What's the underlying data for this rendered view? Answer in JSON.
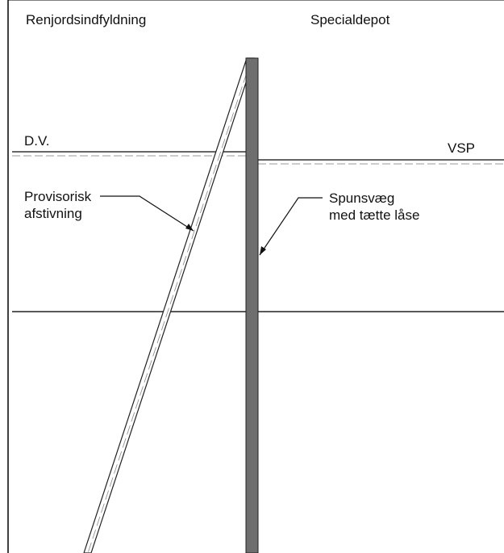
{
  "labels": {
    "left_zone": "Renjordsindfyldning",
    "right_zone": "Specialdepot",
    "left_level": "D.V.",
    "right_level": "VSP",
    "brace": "Provisorisk\nafstivning",
    "wall": "Spunsvæg\nmed tætte låse"
  }
}
